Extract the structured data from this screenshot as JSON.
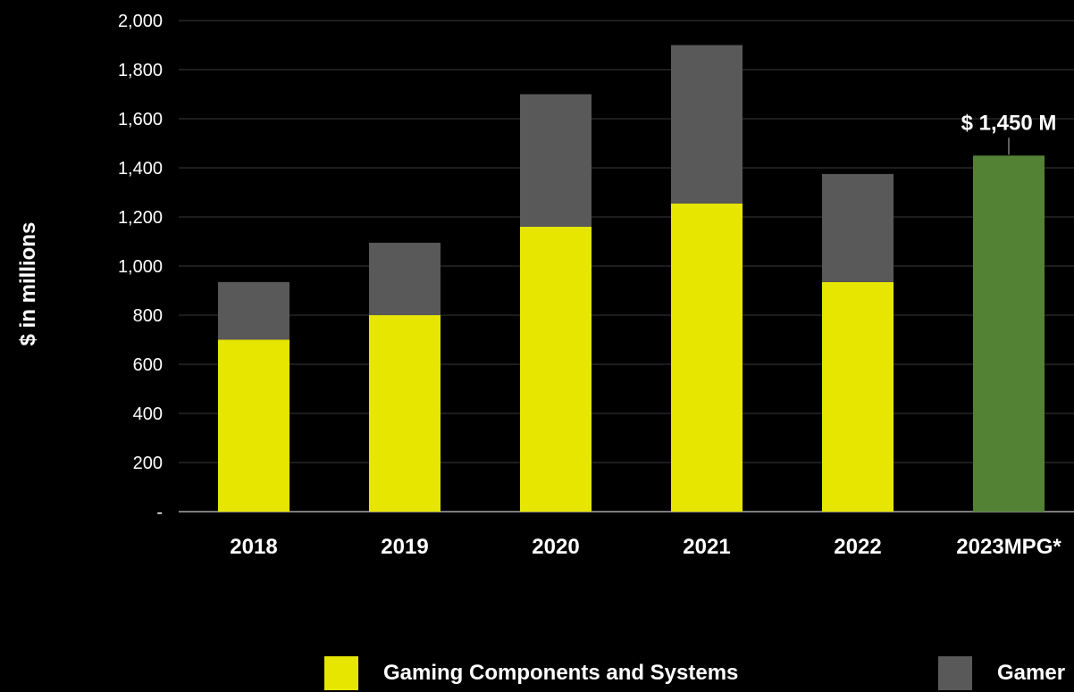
{
  "chart_data": {
    "type": "bar",
    "stacked": true,
    "categories": [
      "2018",
      "2019",
      "2020",
      "2021",
      "2022",
      "2023MPG*"
    ],
    "series": [
      {
        "name": "Gaming Components and Systems",
        "color": "#e6e600",
        "values": [
          700,
          800,
          1160,
          1255,
          935,
          null
        ]
      },
      {
        "name": "Gamer",
        "color": "#595959",
        "values": [
          235,
          295,
          540,
          645,
          440,
          null
        ]
      },
      {
        "name": "",
        "color": "#548235",
        "values": [
          null,
          null,
          null,
          null,
          null,
          1450
        ]
      }
    ],
    "ylabel": "$ in millions",
    "ylim": [
      0,
      2000
    ],
    "yticks": [
      0,
      200,
      400,
      600,
      800,
      1000,
      1200,
      1400,
      1600,
      1800,
      2000
    ],
    "ytick_labels": [
      "-",
      "200",
      "400",
      "600",
      "800",
      "1,000",
      "1,200",
      "1,400",
      "1,600",
      "1,800",
      "2,000"
    ],
    "annotations": [
      {
        "category": "2023MPG*",
        "text": "$ 1,450 M"
      }
    ],
    "grid": true,
    "background": "#000000",
    "legend_position": "bottom"
  }
}
